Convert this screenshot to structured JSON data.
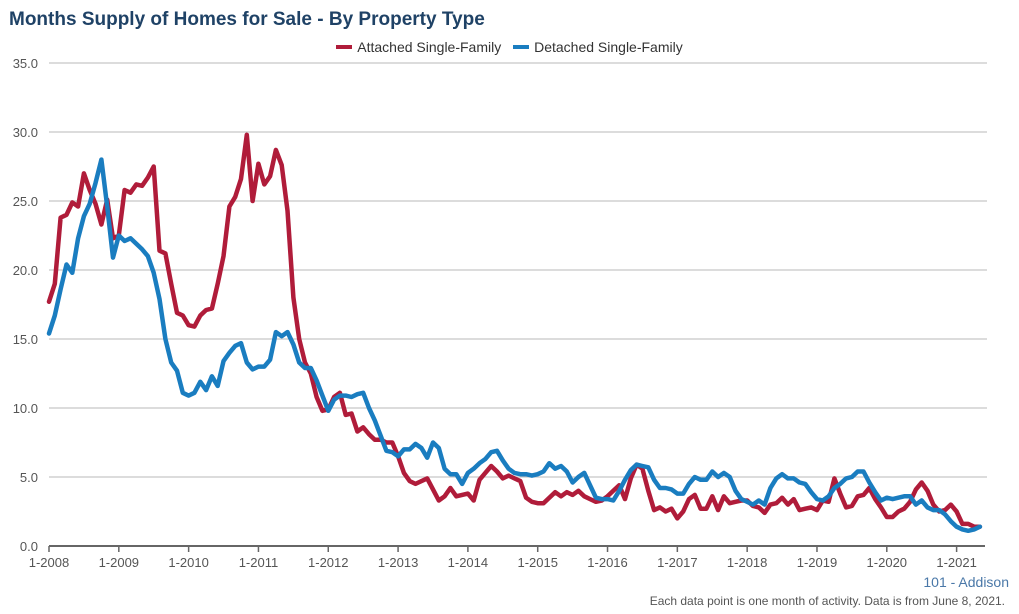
{
  "chart_data": {
    "type": "line",
    "title": "Months Supply of Homes for Sale - By Property Type",
    "xlabel": "",
    "ylabel": "",
    "ylim": [
      0,
      35
    ],
    "y_ticks": [
      "0.0",
      "5.0",
      "10.0",
      "15.0",
      "20.0",
      "25.0",
      "30.0",
      "35.0"
    ],
    "x_ticks": [
      "1-2008",
      "1-2009",
      "1-2010",
      "1-2011",
      "1-2012",
      "1-2013",
      "1-2014",
      "1-2015",
      "1-2016",
      "1-2017",
      "1-2018",
      "1-2019",
      "1-2020",
      "1-2021"
    ],
    "x_range": [
      "1-2008",
      "5-2021"
    ],
    "grid": "horizontal",
    "legend": "top-center",
    "series": [
      {
        "name": "Attached Single-Family",
        "color": "#b01c3a",
        "values": [
          17.7,
          19,
          23.8,
          24,
          24.9,
          24.6,
          27,
          25.8,
          24.8,
          23.3,
          25.1,
          22.3,
          22.5,
          25.8,
          25.6,
          26.2,
          26.1,
          26.7,
          27.5,
          21.4,
          21.2,
          19,
          16.9,
          16.7,
          16,
          15.9,
          16.7,
          17.1,
          17.2,
          19,
          21,
          24.6,
          25.3,
          26.6,
          29.8,
          25,
          27.7,
          26.2,
          26.8,
          28.7,
          27.6,
          24.3,
          18,
          15,
          13.3,
          12.5,
          10.8,
          9.8,
          9.9,
          10.8,
          11.1,
          9.5,
          9.6,
          8.3,
          8.6,
          8.1,
          7.7,
          7.7,
          7.5,
          7.5,
          6.5,
          5.3,
          4.7,
          4.5,
          4.7,
          4.9,
          4.1,
          3.3,
          3.6,
          4.2,
          3.6,
          3.7,
          3.8,
          3.3,
          4.8,
          5.3,
          5.8,
          5.4,
          4.9,
          5.1,
          4.9,
          4.7,
          3.5,
          3.2,
          3.1,
          3.1,
          3.5,
          3.9,
          3.6,
          3.9,
          3.7,
          4,
          3.6,
          3.4,
          3.2,
          3.3,
          3.6,
          4,
          4.4,
          3.4,
          4.9,
          5.9,
          5.6,
          4,
          2.6,
          2.8,
          2.5,
          2.7,
          2,
          2.5,
          3.4,
          3.7,
          2.7,
          2.7,
          3.6,
          2.6,
          3.6,
          3.1,
          3.2,
          3.3,
          3.3,
          2.9,
          2.8,
          2.4,
          3,
          3.1,
          3.5,
          3,
          3.4,
          2.6,
          2.7,
          2.8,
          2.6,
          3.3,
          3.2,
          4.9,
          3.8,
          2.8,
          2.9,
          3.6,
          3.7,
          4.2,
          3.4,
          2.8,
          2.1,
          2.1,
          2.5,
          2.7,
          3.2,
          4.1,
          4.6,
          4,
          3,
          2.5,
          2.6,
          3,
          2.5,
          1.6,
          1.6,
          1.4,
          1.4
        ]
      },
      {
        "name": "Detached Single-Family",
        "color": "#1a7dc0",
        "values": [
          15.4,
          16.7,
          18.6,
          20.4,
          19.8,
          22.3,
          23.9,
          24.8,
          26.3,
          28,
          24.6,
          20.9,
          22.5,
          22.1,
          22.3,
          21.9,
          21.5,
          21,
          19.8,
          17.9,
          15,
          13.3,
          12.7,
          11.1,
          10.9,
          11.1,
          11.9,
          11.3,
          12.3,
          11.6,
          13.4,
          14,
          14.5,
          14.7,
          13.3,
          12.8,
          13,
          13,
          13.5,
          15.5,
          15.2,
          15.5,
          14.6,
          13.3,
          12.9,
          12.9,
          12,
          10.9,
          9.8,
          10.6,
          10.9,
          10.9,
          10.8,
          11,
          11.1,
          10,
          9.1,
          8,
          6.9,
          6.8,
          6.5,
          7,
          7,
          7.4,
          7.1,
          6.4,
          7.5,
          7.1,
          5.6,
          5.2,
          5.2,
          4.5,
          5.3,
          5.6,
          6,
          6.3,
          6.8,
          6.9,
          6.2,
          5.6,
          5.3,
          5.2,
          5.2,
          5.1,
          5.2,
          5.4,
          6,
          5.6,
          5.8,
          5.4,
          4.6,
          5,
          5.3,
          4.4,
          3.5,
          3.4,
          3.4,
          3.3,
          4,
          4.8,
          5.5,
          5.9,
          5.8,
          5.7,
          4.8,
          4.2,
          4.2,
          4.1,
          3.8,
          3.8,
          4.5,
          5,
          4.8,
          4.8,
          5.4,
          5,
          5.3,
          5,
          4,
          3.4,
          3.2,
          3,
          3.3,
          3,
          4.2,
          4.9,
          5.2,
          4.9,
          4.9,
          4.6,
          4.5,
          3.9,
          3.4,
          3.3,
          3.6,
          4.2,
          4.5,
          4.9,
          5,
          5.4,
          5.4,
          4.6,
          3.9,
          3.3,
          3.5,
          3.4,
          3.5,
          3.6,
          3.6,
          3,
          3.3,
          2.8,
          2.6,
          2.6,
          2.3,
          1.8,
          1.4,
          1.2,
          1.1,
          1.2,
          1.4
        ]
      }
    ]
  },
  "footer": {
    "region": "101 - Addison",
    "note": "Each data point is one month of activity. Data is from June 8, 2021."
  }
}
